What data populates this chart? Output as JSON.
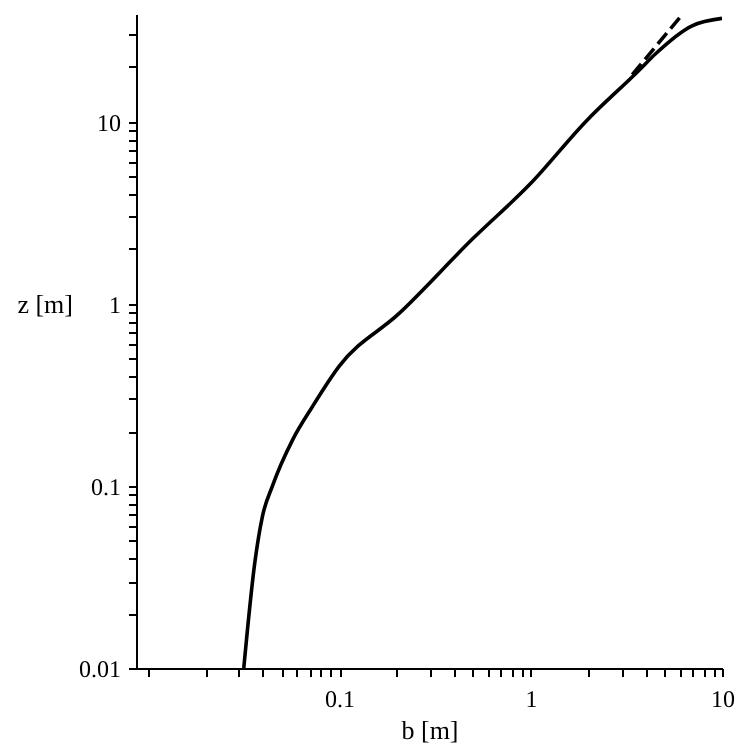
{
  "chart_data": {
    "type": "line",
    "xlabel": "b [m]",
    "ylabel": "z [m]",
    "log": "xy",
    "grid": false,
    "marker": "none",
    "xlim": [
      0.0087,
      10
    ],
    "ylim": [
      0.01,
      39
    ],
    "xticks": [
      {
        "value": 0.01,
        "label": null
      },
      {
        "value": 0.02,
        "label": null
      },
      {
        "value": 0.03,
        "label": null
      },
      {
        "value": 0.04,
        "label": null
      },
      {
        "value": 0.05,
        "label": null
      },
      {
        "value": 0.06,
        "label": null
      },
      {
        "value": 0.07,
        "label": null
      },
      {
        "value": 0.08,
        "label": null
      },
      {
        "value": 0.09,
        "label": null
      },
      0.1,
      {
        "value": 0.2,
        "label": null
      },
      {
        "value": 0.3,
        "label": null
      },
      {
        "value": 0.4,
        "label": null
      },
      {
        "value": 0.5,
        "label": null
      },
      {
        "value": 0.6,
        "label": null
      },
      {
        "value": 0.7,
        "label": null
      },
      {
        "value": 0.8,
        "label": null
      },
      {
        "value": 0.9,
        "label": null
      },
      1,
      {
        "value": 2,
        "label": null
      },
      {
        "value": 3,
        "label": null
      },
      {
        "value": 4,
        "label": null
      },
      {
        "value": 5,
        "label": null
      },
      {
        "value": 6,
        "label": null
      },
      {
        "value": 7,
        "label": null
      },
      {
        "value": 8,
        "label": null
      },
      {
        "value": 9,
        "label": null
      },
      10
    ],
    "yticks": [
      0.01,
      {
        "value": 0.02,
        "label": null
      },
      {
        "value": 0.03,
        "label": null
      },
      {
        "value": 0.04,
        "label": null
      },
      {
        "value": 0.05,
        "label": null
      },
      {
        "value": 0.06,
        "label": null
      },
      {
        "value": 0.07,
        "label": null
      },
      {
        "value": 0.08,
        "label": null
      },
      {
        "value": 0.09,
        "label": null
      },
      0.1,
      {
        "value": 0.2,
        "label": null
      },
      {
        "value": 0.3,
        "label": null
      },
      {
        "value": 0.4,
        "label": null
      },
      {
        "value": 0.5,
        "label": null
      },
      {
        "value": 0.6,
        "label": null
      },
      {
        "value": 0.7,
        "label": null
      },
      {
        "value": 0.8,
        "label": null
      },
      {
        "value": 0.9,
        "label": null
      },
      1,
      {
        "value": 2,
        "label": null
      },
      {
        "value": 3,
        "label": null
      },
      {
        "value": 4,
        "label": null
      },
      {
        "value": 5,
        "label": null
      },
      {
        "value": 6,
        "label": null
      },
      {
        "value": 7,
        "label": null
      },
      {
        "value": 8,
        "label": null
      },
      {
        "value": 9,
        "label": null
      },
      10,
      {
        "value": 20,
        "label": null
      },
      {
        "value": 30,
        "label": null
      }
    ],
    "series": [
      {
        "color": "#000000",
        "line_style": "solid",
        "x": [
          0.0318,
          0.0363,
          0.0398,
          0.0449,
          0.0572,
          0.0727,
          0.1,
          0.206,
          0.5,
          1,
          1.94,
          3.68,
          4.5,
          6.98,
          10
        ],
        "values": [
          0.01,
          0.0378,
          0.068,
          0.1,
          0.179,
          0.273,
          0.453,
          0.885,
          2.28,
          4.57,
          10,
          19.1,
          23.6,
          33.6,
          36.9
        ]
      },
      {
        "color": "#000000",
        "line_style": "dashed",
        "x": [
          3.4,
          6.17
        ],
        "values": [
          18.1,
          38.5
        ]
      }
    ]
  }
}
